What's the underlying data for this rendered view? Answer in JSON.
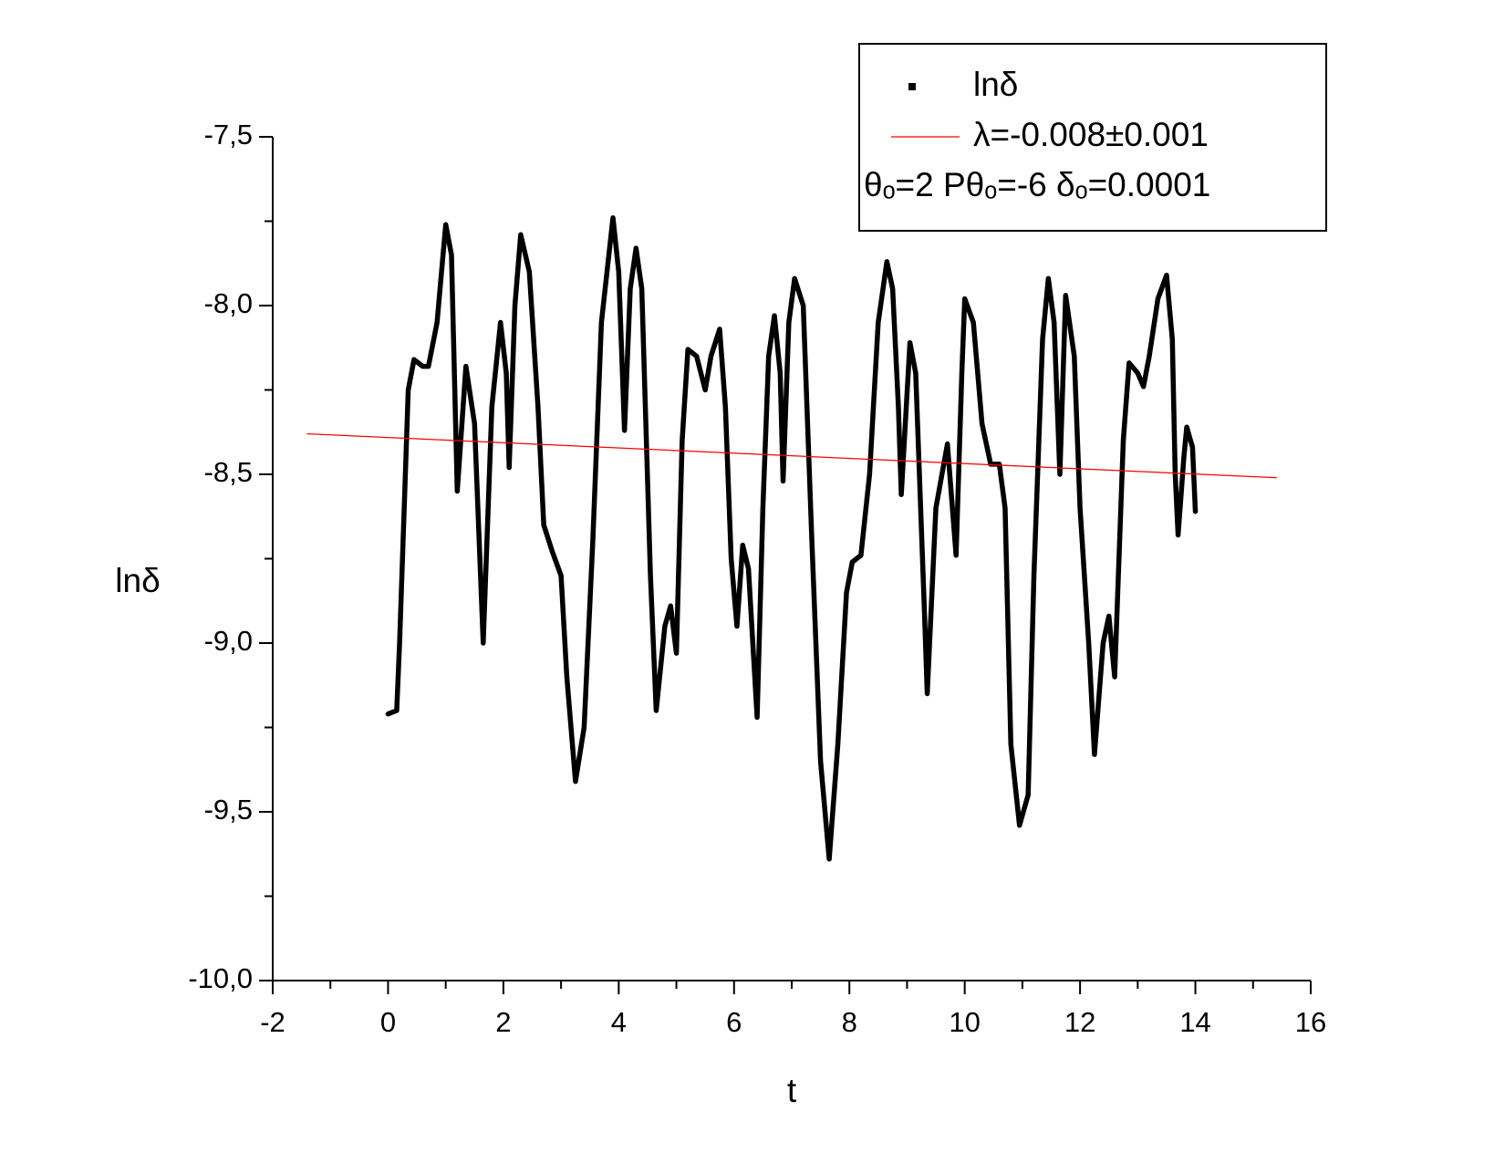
{
  "chart_data": {
    "type": "line",
    "xlabel": "t",
    "ylabel": "lnδ",
    "annotation": "θₒ=2    Pθₒ=-6  δₒ=0.0001",
    "xlim": [
      -2,
      16
    ],
    "xticks": [
      -2,
      0,
      2,
      4,
      6,
      8,
      10,
      12,
      14,
      16
    ],
    "xticks_minor": [
      -1,
      1,
      3,
      5,
      7,
      9,
      11,
      13,
      15
    ],
    "ylim": [
      -10.0,
      -7.5
    ],
    "yticks": [
      {
        "value": -10.0,
        "label": "-10,0"
      },
      {
        "value": -9.5,
        "label": "-9,5"
      },
      {
        "value": -9.0,
        "label": "-9,0"
      },
      {
        "value": -8.5,
        "label": "-8,5"
      },
      {
        "value": -8.0,
        "label": "-8,0"
      },
      {
        "value": -7.5,
        "label": "-7,5"
      }
    ],
    "yticks_minor": [
      -9.75,
      -9.25,
      -8.75,
      -8.25,
      -7.75
    ],
    "series": [
      {
        "name": "lnδ",
        "color": "#000000",
        "x": [
          0,
          0.15,
          0.2,
          0.3,
          0.35,
          0.45,
          0.6,
          0.7,
          0.85,
          1.0,
          1.1,
          1.2,
          1.35,
          1.5,
          1.65,
          1.8,
          1.95,
          2.05,
          2.1,
          2.2,
          2.3,
          2.45,
          2.6,
          2.7,
          2.85,
          3.0,
          3.1,
          3.25,
          3.4,
          3.55,
          3.7,
          3.9,
          4.0,
          4.1,
          4.2,
          4.3,
          4.4,
          4.55,
          4.65,
          4.8,
          4.9,
          5.0,
          5.1,
          5.2,
          5.35,
          5.5,
          5.6,
          5.75,
          5.85,
          5.95,
          6.05,
          6.15,
          6.25,
          6.4,
          6.5,
          6.6,
          6.7,
          6.8,
          6.85,
          6.95,
          7.05,
          7.2,
          7.35,
          7.5,
          7.65,
          7.8,
          7.95,
          8.05,
          8.2,
          8.35,
          8.5,
          8.65,
          8.75,
          8.85,
          8.9,
          9.05,
          9.15,
          9.3,
          9.35,
          9.5,
          9.7,
          9.85,
          9.95,
          10.0,
          10.15,
          10.3,
          10.45,
          10.6,
          10.7,
          10.8,
          10.95,
          11.1,
          11.2,
          11.35,
          11.45,
          11.55,
          11.65,
          11.75,
          11.9,
          12.0,
          12.15,
          12.25,
          12.4,
          12.5,
          12.6,
          12.75,
          12.85,
          13.0,
          13.1,
          13.2,
          13.35,
          13.5,
          13.6,
          13.65,
          13.7,
          13.8,
          13.85,
          13.95,
          14.0
        ],
        "values": [
          -9.21,
          -9.2,
          -9.0,
          -8.5,
          -8.25,
          -8.16,
          -8.18,
          -8.18,
          -8.05,
          -7.76,
          -7.85,
          -8.55,
          -8.18,
          -8.35,
          -9.0,
          -8.3,
          -8.05,
          -8.2,
          -8.48,
          -8.0,
          -7.79,
          -7.9,
          -8.3,
          -8.65,
          -8.73,
          -8.8,
          -9.1,
          -9.41,
          -9.25,
          -8.7,
          -8.05,
          -7.74,
          -7.9,
          -8.37,
          -7.95,
          -7.83,
          -7.95,
          -8.8,
          -9.2,
          -8.95,
          -8.89,
          -9.03,
          -8.4,
          -8.13,
          -8.15,
          -8.25,
          -8.15,
          -8.07,
          -8.3,
          -8.75,
          -8.95,
          -8.71,
          -8.78,
          -9.22,
          -8.6,
          -8.15,
          -8.03,
          -8.2,
          -8.52,
          -8.05,
          -7.92,
          -8.0,
          -8.7,
          -9.35,
          -9.64,
          -9.3,
          -8.85,
          -8.76,
          -8.74,
          -8.5,
          -8.05,
          -7.87,
          -7.95,
          -8.3,
          -8.56,
          -8.11,
          -8.2,
          -8.9,
          -9.15,
          -8.6,
          -8.41,
          -8.74,
          -8.2,
          -7.98,
          -8.05,
          -8.35,
          -8.47,
          -8.47,
          -8.6,
          -9.3,
          -9.54,
          -9.45,
          -8.8,
          -8.1,
          -7.92,
          -8.05,
          -8.5,
          -7.97,
          -8.15,
          -8.6,
          -9.0,
          -9.33,
          -9.0,
          -8.92,
          -9.1,
          -8.4,
          -8.17,
          -8.2,
          -8.24,
          -8.15,
          -7.98,
          -7.91,
          -8.1,
          -8.5,
          -8.68,
          -8.45,
          -8.36,
          -8.42,
          -8.61
        ]
      },
      {
        "name": "λ=-0.008±0.001",
        "color": "#ff0000",
        "x": [
          -1.4,
          15.4
        ],
        "values": [
          -8.38,
          -8.51
        ]
      }
    ]
  }
}
